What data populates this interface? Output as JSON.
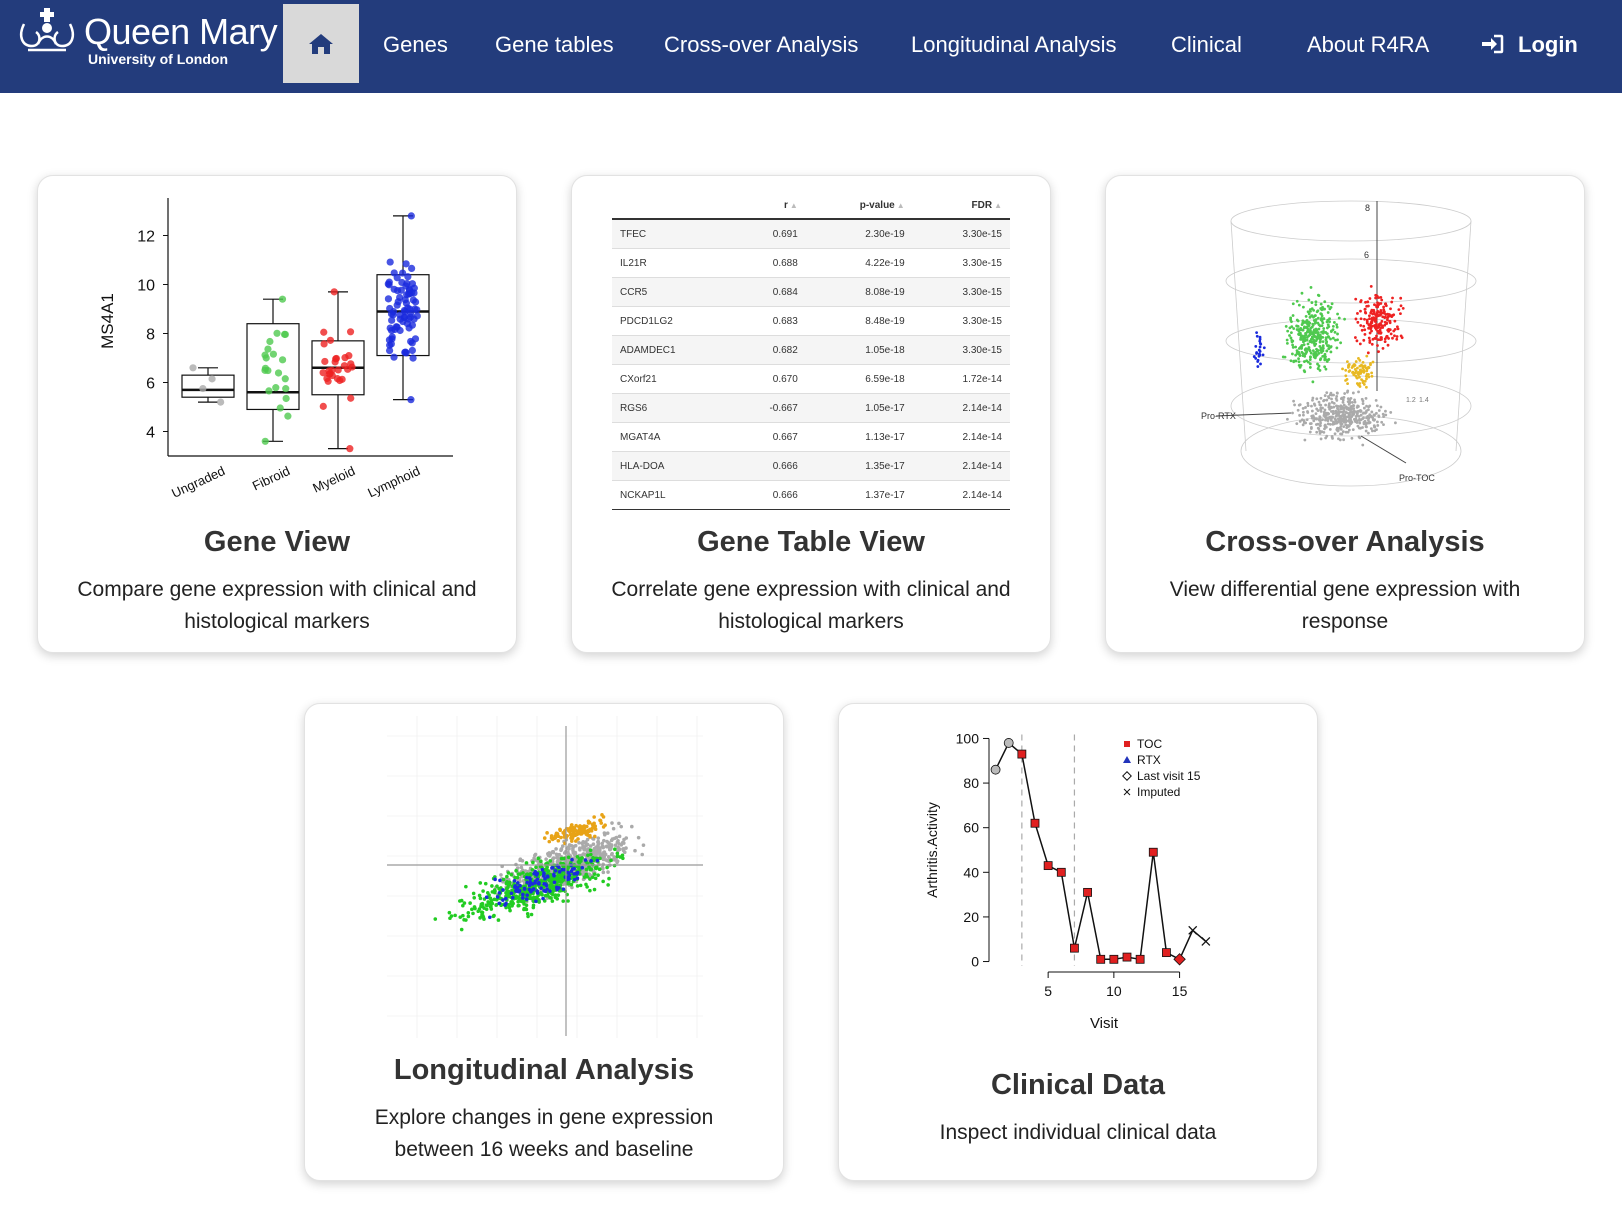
{
  "brand": {
    "name": "Queen Mary",
    "subtitle": "University of London"
  },
  "nav": {
    "home_icon": "home-icon",
    "items": [
      "Genes",
      "Gene tables",
      "Cross-over Analysis",
      "Longitudinal Analysis",
      "Clinical",
      "About R4RA"
    ],
    "login": "Login",
    "login_icon": "sign-in-icon"
  },
  "colors": {
    "navbar": "#233c7c",
    "home_active": "#d9d9d9"
  },
  "cards": [
    {
      "title": "Gene View",
      "desc": [
        "Compare gene expression with clinical and",
        "histological markers"
      ]
    },
    {
      "title": "Gene Table View",
      "desc": [
        "Correlate gene expression with clinical and",
        "histological markers"
      ]
    },
    {
      "title": "Cross-over Analysis",
      "desc": [
        "View differential gene expression with",
        "response"
      ]
    },
    {
      "title": "Longitudinal Analysis",
      "desc": [
        "Explore changes in gene expression",
        "between 16 weeks and baseline"
      ]
    },
    {
      "title": "Clinical Data",
      "desc": [
        "Inspect individual clinical data"
      ]
    }
  ],
  "gene_view_plot": {
    "ylabel": "MS4A1",
    "yticks": [
      "4",
      "6",
      "8",
      "10",
      "12"
    ],
    "groups": [
      "Ungraded",
      "Fibroid",
      "Myeloid",
      "Lymphoid"
    ],
    "colors": [
      "#aaaaaa",
      "#4fc94f",
      "#ee2222",
      "#1a2bdd"
    ],
    "box_stats": [
      {
        "min": 5.2,
        "q1": 5.4,
        "median": 5.7,
        "q3": 6.3,
        "max": 6.6
      },
      {
        "min": 3.6,
        "q1": 4.9,
        "median": 5.6,
        "q3": 8.4,
        "max": 9.4
      },
      {
        "min": 3.3,
        "q1": 5.5,
        "median": 6.6,
        "q3": 7.7,
        "max": 9.7
      },
      {
        "min": 5.3,
        "q1": 7.1,
        "median": 8.9,
        "q3": 10.4,
        "max": 12.8
      }
    ]
  },
  "gene_table": {
    "columns": [
      "",
      "r",
      "p-value",
      "FDR"
    ],
    "rows": [
      [
        "TFEC",
        "0.691",
        "2.30e-19",
        "3.30e-15"
      ],
      [
        "IL21R",
        "0.688",
        "4.22e-19",
        "3.30e-15"
      ],
      [
        "CCR5",
        "0.684",
        "8.08e-19",
        "3.30e-15"
      ],
      [
        "PDCD1LG2",
        "0.683",
        "8.48e-19",
        "3.30e-15"
      ],
      [
        "ADAMDEC1",
        "0.682",
        "1.05e-18",
        "3.30e-15"
      ],
      [
        "CXorf21",
        "0.670",
        "6.59e-18",
        "1.72e-14"
      ],
      [
        "RGS6",
        "-0.667",
        "1.05e-17",
        "2.14e-14"
      ],
      [
        "MGAT4A",
        "0.667",
        "1.13e-17",
        "2.14e-14"
      ],
      [
        "HLA-DOA",
        "0.666",
        "1.35e-17",
        "2.14e-14"
      ],
      [
        "NCKAP1L",
        "0.666",
        "1.37e-17",
        "2.14e-14"
      ]
    ]
  },
  "crossover_plot": {
    "axis_labels": [
      "Pro-RTX",
      "Pro-TOC"
    ],
    "tick_labels": [
      "8",
      "6",
      "1.2",
      "1.4"
    ],
    "colors": [
      "#4fc94f",
      "#ee2222",
      "#e8b923",
      "#aaaaaa",
      "#1a2bdd"
    ]
  },
  "longitudinal_plot": {
    "colors": [
      "#aaaaaa",
      "#e8a317",
      "#22cc22",
      "#1a2bdd"
    ]
  },
  "chart_data": {
    "type": "line",
    "x": [
      1,
      2,
      3,
      4,
      5,
      6,
      7,
      8,
      9,
      10,
      11,
      12,
      13,
      14,
      15,
      16,
      17
    ],
    "series": [
      {
        "name": "TOC",
        "values": [
          86,
          98,
          93,
          62,
          43,
          40,
          6,
          31,
          1,
          1,
          2,
          1,
          49,
          4,
          1,
          14,
          9
        ]
      }
    ],
    "markers": [
      "Last visit 15",
      "Last visit 15",
      "TOC",
      "TOC",
      "TOC",
      "TOC",
      "TOC",
      "TOC",
      "TOC",
      "TOC",
      "TOC",
      "TOC",
      "TOC",
      "TOC",
      "TOC",
      "Imputed",
      "Imputed"
    ],
    "legend": [
      "TOC",
      "RTX",
      "Last visit 15",
      "Imputed"
    ],
    "legend_position": "top-right",
    "dashed_x": [
      3,
      7
    ],
    "xlabel": "Visit",
    "ylabel": "Arthritis.Activity",
    "xticks": [
      "5",
      "10",
      "15"
    ],
    "yticks": [
      "0",
      "20",
      "40",
      "60",
      "80",
      "100"
    ],
    "xlim": [
      0.5,
      18
    ],
    "ylim": [
      -2,
      102
    ],
    "grid": false
  }
}
